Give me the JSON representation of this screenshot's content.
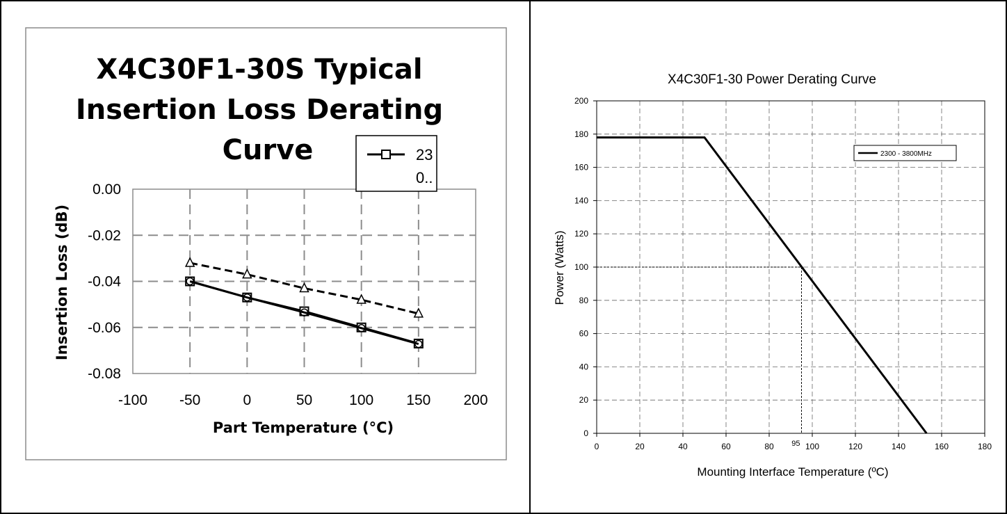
{
  "chart_data": [
    {
      "type": "line",
      "title": "X4C30F1-30S Typical Insertion Loss Derating Curve",
      "title_lines": [
        "X4C30F1-30S Typical",
        "Insertion Loss Derating",
        "Curve"
      ],
      "xlabel": "Part Temperature (°C)",
      "ylabel": "Insertion Loss (dB)",
      "xlim": [
        -100,
        200
      ],
      "ylim": [
        -0.08,
        0.0
      ],
      "x_ticks": [
        -100,
        -50,
        0,
        50,
        100,
        150,
        200
      ],
      "x_tick_labels": [
        "-100",
        "-50",
        "0",
        "50",
        "100",
        "150",
        "200"
      ],
      "y_ticks": [
        0.0,
        -0.02,
        -0.04,
        -0.06,
        -0.08
      ],
      "y_tick_labels": [
        "0.00",
        "-0.02",
        "-0.04",
        "-0.06",
        "-0.08"
      ],
      "grid": true,
      "legend": {
        "placement": "top-right",
        "line1": "23",
        "line2": "0.."
      },
      "series": [
        {
          "x": [
            -50,
            0,
            50,
            100,
            150
          ],
          "values": [
            -0.032,
            -0.037,
            -0.043,
            -0.048,
            -0.054
          ],
          "marker": "triangle",
          "style": "dashed"
        },
        {
          "x": [
            -50,
            0,
            50,
            100,
            150
          ],
          "values": [
            -0.04,
            -0.047,
            -0.053,
            -0.06,
            -0.067
          ],
          "marker": "square",
          "style": "solid"
        },
        {
          "x": [
            -50,
            0,
            50,
            100,
            150
          ],
          "values": [
            -0.04,
            -0.047,
            -0.0535,
            -0.0603,
            -0.0672
          ],
          "marker": "circle",
          "style": "solid"
        }
      ]
    },
    {
      "type": "line",
      "title": "X4C30F1-30 Power Derating Curve",
      "xlabel": "Mounting Interface Temperature (ºC)",
      "ylabel": "Power (Watts)",
      "xlim": [
        0,
        180
      ],
      "ylim": [
        0,
        200
      ],
      "x_ticks": [
        0,
        20,
        40,
        60,
        80,
        100,
        120,
        140,
        160,
        180
      ],
      "x_tick_labels": [
        "0",
        "20",
        "40",
        "60",
        "80",
        "100",
        "120",
        "140",
        "160",
        "180"
      ],
      "y_ticks": [
        0,
        20,
        40,
        60,
        80,
        100,
        120,
        140,
        160,
        180,
        200
      ],
      "y_tick_labels": [
        "0",
        "20",
        "40",
        "60",
        "80",
        "100",
        "120",
        "140",
        "160",
        "180",
        "200"
      ],
      "grid": true,
      "legend": {
        "placement": "top-right"
      },
      "series": [
        {
          "name": "2300 - 3800MHz",
          "x": [
            0,
            50,
            153
          ],
          "values": [
            178,
            178,
            0
          ]
        }
      ],
      "annotation": {
        "x": 95,
        "y": 100,
        "label": "95"
      }
    }
  ]
}
